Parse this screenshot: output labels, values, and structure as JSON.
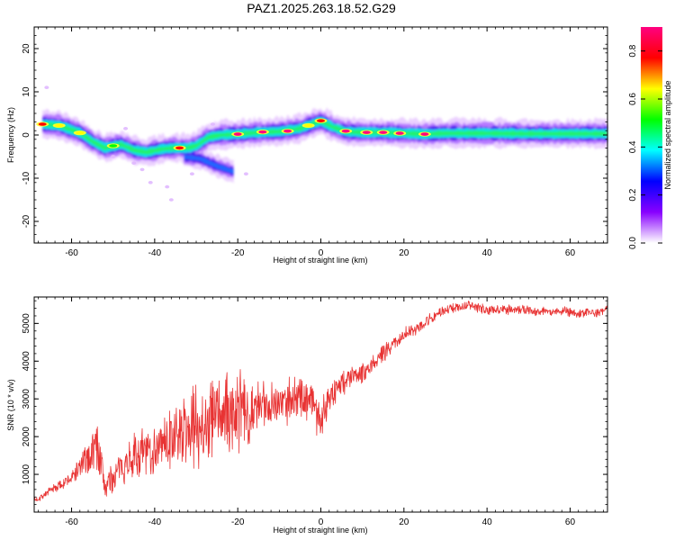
{
  "title": "PAZ1.2025.263.18.52.G29",
  "chart_data": [
    {
      "type": "heatmap",
      "name": "spectrogram",
      "xlabel": "Height of straight line (km)",
      "ylabel": "Frequency (Hz)",
      "xlim": [
        -69,
        69
      ],
      "ylim": [
        -25,
        25
      ],
      "xticks": [
        -60,
        -40,
        -20,
        0,
        20,
        40,
        60
      ],
      "yticks": [
        -20,
        -10,
        0,
        10,
        20
      ],
      "ridge": [
        [
          -67,
          2.5
        ],
        [
          -63,
          2.2
        ],
        [
          -58,
          0.5
        ],
        [
          -55,
          -1.5
        ],
        [
          -52,
          -3.0
        ],
        [
          -48,
          -2.2
        ],
        [
          -45,
          -3.5
        ],
        [
          -42,
          -4.0
        ],
        [
          -38,
          -3.2
        ],
        [
          -35,
          -3.0
        ],
        [
          -32,
          -3.0
        ],
        [
          -30,
          -2.5
        ],
        [
          -27,
          -0.5
        ],
        [
          -24,
          0.0
        ],
        [
          -20,
          0.2
        ],
        [
          -15,
          0.6
        ],
        [
          -10,
          0.8
        ],
        [
          -5,
          1.5
        ],
        [
          -2,
          2.6
        ],
        [
          0,
          3.2
        ],
        [
          3,
          1.8
        ],
        [
          6,
          0.8
        ],
        [
          10,
          0.6
        ],
        [
          15,
          0.6
        ],
        [
          20,
          0.4
        ],
        [
          25,
          0.2
        ],
        [
          30,
          0.4
        ],
        [
          40,
          0.4
        ],
        [
          50,
          0.3
        ],
        [
          60,
          0.3
        ],
        [
          69,
          0.3
        ]
      ],
      "branch": [
        [
          -33,
          -5.0
        ],
        [
          -29,
          -5.5
        ],
        [
          -25,
          -7.2
        ],
        [
          -21,
          -8.5
        ]
      ],
      "peaks": [
        [
          -67,
          2.5,
          0.65
        ],
        [
          -63,
          2.2,
          0.6
        ],
        [
          -58,
          0.5,
          0.55
        ],
        [
          -50,
          -2.5,
          0.5
        ],
        [
          -34,
          -3.0,
          0.75
        ],
        [
          -20,
          0.2,
          0.95
        ],
        [
          -14,
          0.7,
          0.9
        ],
        [
          -8,
          0.9,
          0.9
        ],
        [
          -3,
          2.2,
          0.6
        ],
        [
          0,
          3.3,
          0.7
        ],
        [
          6,
          0.9,
          0.85
        ],
        [
          11,
          0.6,
          0.8
        ],
        [
          15,
          0.6,
          0.9
        ],
        [
          19,
          0.4,
          0.9
        ],
        [
          25,
          0.2,
          0.8
        ]
      ],
      "colorbar": {
        "label": "Normalized spectral amplitude",
        "range": [
          0,
          0.9
        ],
        "ticks": [
          "0.0",
          "0.2",
          "0.4",
          "0.6",
          "0.8"
        ],
        "colors": [
          "#ffffff",
          "#8800ff",
          "#0000ff",
          "#00ffff",
          "#00ff00",
          "#ffff00",
          "#ff0000",
          "#ff0080"
        ]
      }
    },
    {
      "type": "line",
      "name": "snr",
      "xlabel": "Height of straight line (km)",
      "ylabel": "SNR (10 * v/v)",
      "xlim": [
        -69,
        69
      ],
      "ylim": [
        0,
        5700
      ],
      "xticks": [
        -60,
        -40,
        -20,
        0,
        20,
        40,
        60
      ],
      "yticks": [
        1000,
        2000,
        3000,
        4000,
        5000
      ],
      "color": "#e83333",
      "x": [
        -69,
        -66,
        -63,
        -60,
        -58,
        -56,
        -54,
        -52,
        -50,
        -48,
        -46,
        -44,
        -42,
        -40,
        -38,
        -36,
        -34,
        -32,
        -30,
        -28,
        -26,
        -24,
        -22,
        -20,
        -18,
        -16,
        -14,
        -12,
        -10,
        -8,
        -6,
        -4,
        -2,
        0,
        2,
        4,
        6,
        8,
        10,
        12,
        14,
        16,
        18,
        20,
        22,
        24,
        26,
        28,
        30,
        32,
        34,
        36,
        38,
        40,
        42,
        44,
        46,
        48,
        50,
        52,
        54,
        56,
        58,
        60,
        62,
        64,
        66,
        69
      ],
      "y": [
        300,
        500,
        700,
        900,
        1200,
        1400,
        1900,
        700,
        900,
        1200,
        1400,
        1500,
        1600,
        1700,
        1800,
        1900,
        2100,
        2200,
        2300,
        2400,
        2500,
        2600,
        2500,
        2700,
        2700,
        2700,
        2800,
        2900,
        2900,
        3000,
        3000,
        3100,
        3000,
        2400,
        3100,
        3300,
        3500,
        3600,
        3700,
        3900,
        4100,
        4300,
        4500,
        4700,
        4850,
        4950,
        5100,
        5250,
        5350,
        5400,
        5450,
        5500,
        5400,
        5350,
        5350,
        5400,
        5350,
        5400,
        5350,
        5300,
        5350,
        5300,
        5350,
        5300,
        5250,
        5300,
        5250,
        5400
      ],
      "noise_amplitude": [
        100,
        100,
        150,
        200,
        300,
        500,
        700,
        500,
        400,
        450,
        500,
        650,
        700,
        750,
        700,
        800,
        950,
        1000,
        1100,
        1150,
        1200,
        1200,
        1150,
        1100,
        950,
        800,
        700,
        650,
        600,
        650,
        650,
        600,
        550,
        700,
        450,
        400,
        350,
        350,
        300,
        250,
        250,
        220,
        200,
        200,
        180,
        180,
        160,
        150,
        150,
        130,
        130,
        130,
        130,
        130,
        130,
        130,
        130,
        130,
        130,
        130,
        130,
        130,
        130,
        130,
        130,
        130,
        130,
        130
      ]
    }
  ]
}
